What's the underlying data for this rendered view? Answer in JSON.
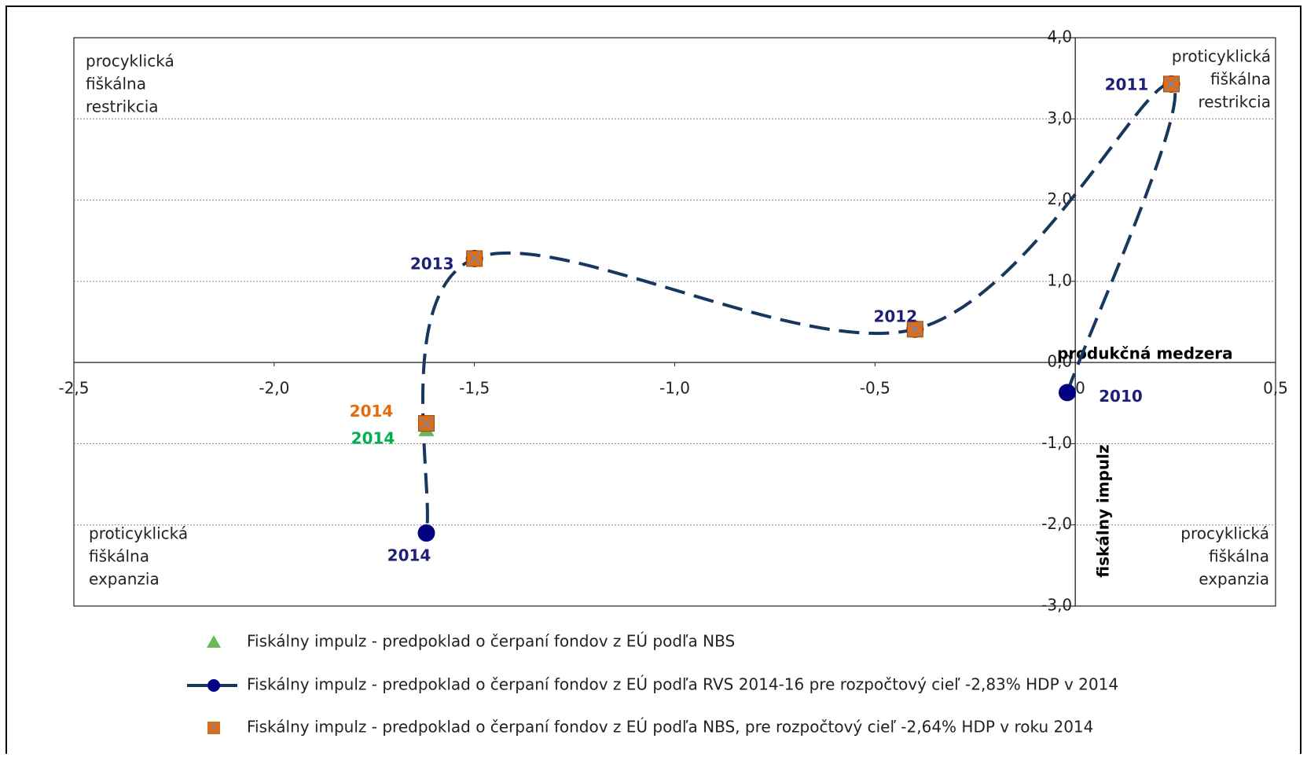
{
  "chart_data": {
    "type": "scatter",
    "x_axis_title": "produkčná medzera",
    "y_axis_title": "fiskálny impulz",
    "xlim": [
      -2.5,
      0.5
    ],
    "ylim": [
      -3,
      4
    ],
    "xticks": [
      {
        "value": -2.5,
        "label": "-2,5"
      },
      {
        "value": -2,
        "label": "-2,0"
      },
      {
        "value": -1.5,
        "label": "-1,5"
      },
      {
        "value": -1,
        "label": "-1,0"
      },
      {
        "value": -0.5,
        "label": "-0,5"
      },
      0,
      {
        "value": 0.5,
        "label": "0,5"
      }
    ],
    "yticks": [
      {
        "value": 4,
        "label": "4,0"
      },
      {
        "value": 3,
        "label": "3,0"
      },
      {
        "value": 2,
        "label": "2,0"
      },
      {
        "value": 1,
        "label": "1,0"
      },
      {
        "value": 0,
        "label": "0,0"
      },
      {
        "value": -1,
        "label": "-1,0"
      },
      {
        "value": -2,
        "label": "-2,0"
      },
      {
        "value": -3,
        "label": "-3,0"
      }
    ],
    "grid": true,
    "annotations": {
      "top_left": [
        "procyklická",
        "fiškálna",
        "restrikcia"
      ],
      "top_right": [
        "proticyklická",
        "fiškálna",
        "restrikcia"
      ],
      "bottom_left": [
        "proticyklická",
        "fiškálna",
        "expanzia"
      ],
      "bottom_right": [
        "procyklická",
        "fiškálna",
        "expanzia"
      ]
    },
    "series": [
      {
        "name": "Fiskálny impulz - predpoklad o čerpaní fondov z EÚ podľa NBS",
        "marker": "triangle",
        "color": "#66bb55",
        "label_color": "#00b050",
        "x": [
          -1.62
        ],
        "values": [
          -0.84
        ],
        "labels": [
          "2014"
        ]
      },
      {
        "name": "Fiskálny impulz - predpoklad o čerpaní fondov z EÚ podľa RVS 2014-16 pre rozpočtový cieľ -2,83% HDP v 2014",
        "marker": "circle",
        "color": "#000080",
        "line_color": "#17375e",
        "line": "dashed-smooth",
        "label_color": "#1f1f7a",
        "x": [
          -0.02,
          0.24,
          -0.4,
          -1.5,
          -1.62
        ],
        "values": [
          -0.37,
          3.43,
          0.41,
          1.28,
          -2.1
        ],
        "labels": [
          "2010",
          "2011",
          "2012",
          "2013",
          "2014"
        ]
      },
      {
        "name": "Fiskálny impulz - predpoklad o čerpaní fondov z EÚ podľa NBS, pre rozpočtový cieľ -2,64% HDP v roku 2014",
        "marker": "square",
        "color": "#e46c0a",
        "label_color": "#e46c0a",
        "x": [
          0.24,
          -0.4,
          -1.5,
          -1.62
        ],
        "values": [
          3.43,
          0.41,
          1.28,
          -0.75
        ],
        "labels": [
          null,
          null,
          null,
          "2014"
        ]
      }
    ]
  }
}
